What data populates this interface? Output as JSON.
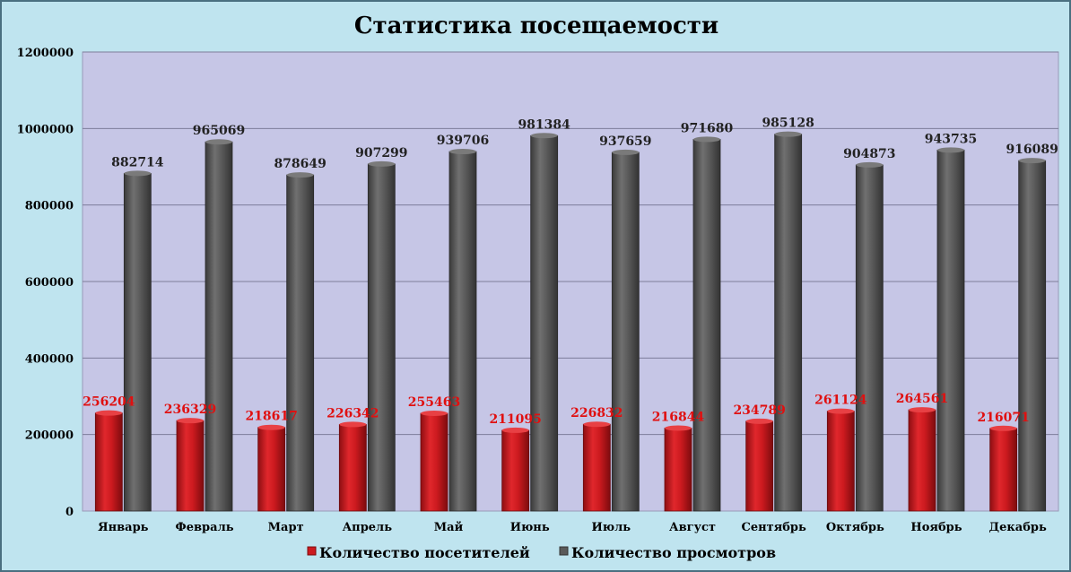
{
  "chart_data": {
    "type": "bar",
    "title": "Статистика посещаемости",
    "categories": [
      "Январь",
      "Февраль",
      "Март",
      "Апрель",
      "Май",
      "Июнь",
      "Июль",
      "Август",
      "Сентябрь",
      "Октябрь",
      "Ноябрь",
      "Декабрь"
    ],
    "series": [
      {
        "name": "Количество посетителей",
        "color": "#cc1a1f",
        "values": [
          256204,
          236329,
          218617,
          226342,
          255463,
          211095,
          226832,
          216844,
          234789,
          261124,
          264561,
          216071
        ]
      },
      {
        "name": "Количество просмотров",
        "color": "#5a5a5a",
        "values": [
          882714,
          965069,
          878649,
          907299,
          939706,
          981384,
          937659,
          971680,
          985128,
          904873,
          943735,
          916089
        ]
      }
    ],
    "yticks": [
      "0",
      "200000",
      "400000",
      "600000",
      "800000",
      "1000000",
      "1200000"
    ],
    "ylim": [
      0,
      1200000
    ],
    "grid": true,
    "legend_position": "bottom",
    "plot_background": "#c6c6e6"
  }
}
